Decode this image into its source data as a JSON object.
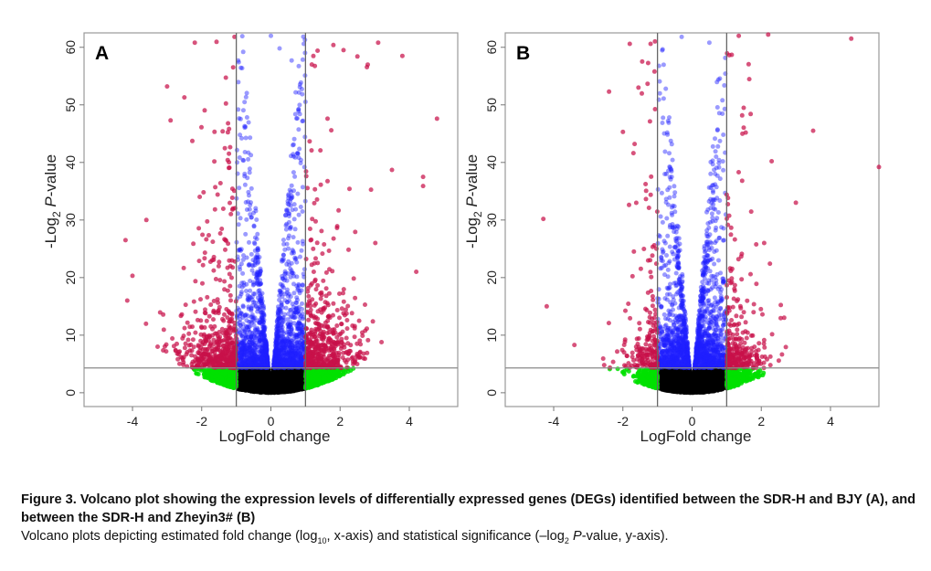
{
  "chart_data": [
    {
      "type": "scatter",
      "panel_label": "A",
      "xlabel": "LogFold change",
      "ylabel_prefix": "-Log",
      "ylabel_sub": "2",
      "ylabel_italic": "P",
      "ylabel_suffix": "-value",
      "xlim": [
        -5.4,
        5.4
      ],
      "ylim": [
        -2.4,
        62.5
      ],
      "xticks": [
        -4,
        -2,
        0,
        2,
        4
      ],
      "yticks": [
        0,
        10,
        20,
        30,
        40,
        50,
        60
      ],
      "fold_change_thresholds": [
        -1,
        1
      ],
      "significance_threshold": 4.3,
      "colors": {
        "significant_fold": "#c8104a",
        "significant_only": "#2020ff",
        "fold_only": "#00e000",
        "not_significant": "#000000",
        "threshold_line": "#8a8a8a"
      },
      "generated_cloud": {
        "n_points": 6500,
        "seed": 11,
        "x_sd": 0.95,
        "x_shift": 0.02,
        "tail_mean": 16,
        "tail_prob": 0.2
      },
      "outliers": [
        {
          "x": -4.2,
          "y": 26.5
        },
        {
          "x": -4.15,
          "y": 16
        },
        {
          "x": -3.6,
          "y": 30
        },
        {
          "x": -4.0,
          "y": 20.3
        },
        {
          "x": -3.0,
          "y": 53.2
        },
        {
          "x": -2.9,
          "y": 47.3
        },
        {
          "x": -2.2,
          "y": 60.8
        },
        {
          "x": -2.5,
          "y": 51.3
        },
        {
          "x": 3.1,
          "y": 60.8
        },
        {
          "x": 3.8,
          "y": 58.5
        },
        {
          "x": 4.8,
          "y": 47.6
        },
        {
          "x": 4.4,
          "y": 37.5
        },
        {
          "x": 4.4,
          "y": 35.9
        },
        {
          "x": 4.2,
          "y": 21
        },
        {
          "x": 3.5,
          "y": 38.7
        },
        {
          "x": 2.1,
          "y": 59.5
        },
        {
          "x": 2.5,
          "y": 58.4
        },
        {
          "x": 2.8,
          "y": 57
        },
        {
          "x": 0.0,
          "y": 62
        },
        {
          "x": 0.25,
          "y": 59.8
        },
        {
          "x": -0.8,
          "y": 59.2
        },
        {
          "x": 0.6,
          "y": 57.7
        },
        {
          "x": -1.05,
          "y": 61.8
        },
        {
          "x": 1.35,
          "y": 59.4
        }
      ]
    },
    {
      "type": "scatter",
      "panel_label": "B",
      "xlabel": "LogFold change",
      "ylabel_prefix": "-Log",
      "ylabel_sub": "2",
      "ylabel_italic": "P",
      "ylabel_suffix": "-value",
      "xlim": [
        -5.4,
        5.4
      ],
      "ylim": [
        -2.4,
        62.5
      ],
      "xticks": [
        -4,
        -2,
        0,
        2,
        4
      ],
      "yticks": [
        0,
        10,
        20,
        30,
        40,
        50,
        60
      ],
      "fold_change_thresholds": [
        -1,
        1
      ],
      "significance_threshold": 4.3,
      "colors": {
        "significant_fold": "#c8104a",
        "significant_only": "#2020ff",
        "fold_only": "#00e000",
        "not_significant": "#000000",
        "threshold_line": "#8a8a8a"
      },
      "generated_cloud": {
        "n_points": 6000,
        "seed": 29,
        "x_sd": 0.72,
        "x_shift": 0.05,
        "tail_mean": 16,
        "tail_prob": 0.2
      },
      "outliers": [
        {
          "x": -4.3,
          "y": 30.2
        },
        {
          "x": -4.2,
          "y": 15
        },
        {
          "x": -3.4,
          "y": 8.3
        },
        {
          "x": 4.6,
          "y": 61.5
        },
        {
          "x": 5.4,
          "y": 39.2
        },
        {
          "x": 3.5,
          "y": 45.5
        },
        {
          "x": 2.3,
          "y": 40.2
        },
        {
          "x": -1.8,
          "y": 60.6
        },
        {
          "x": -2.4,
          "y": 52.3
        },
        {
          "x": 1.35,
          "y": 62
        },
        {
          "x": 2.2,
          "y": 62.2
        },
        {
          "x": -2.0,
          "y": 45.3
        },
        {
          "x": -0.3,
          "y": 61.8
        },
        {
          "x": 0.5,
          "y": 60.8
        },
        {
          "x": -1.55,
          "y": 53
        },
        {
          "x": 3.0,
          "y": 33
        }
      ]
    }
  ],
  "caption": {
    "title": "Figure 3.  Volcano plot showing the expression levels of differentially expressed genes (DEGs) identified between the SDR-H and BJY (A), and between the SDR-H and Zheyin3# (B)",
    "desc_1": "Volcano plots depicting estimated fold change (log",
    "desc_sub1": "10",
    "desc_2": ", x-axis) and statistical significance (–log",
    "desc_sub2": "2",
    "desc_italic": " P",
    "desc_3": "-value, y-axis)."
  }
}
